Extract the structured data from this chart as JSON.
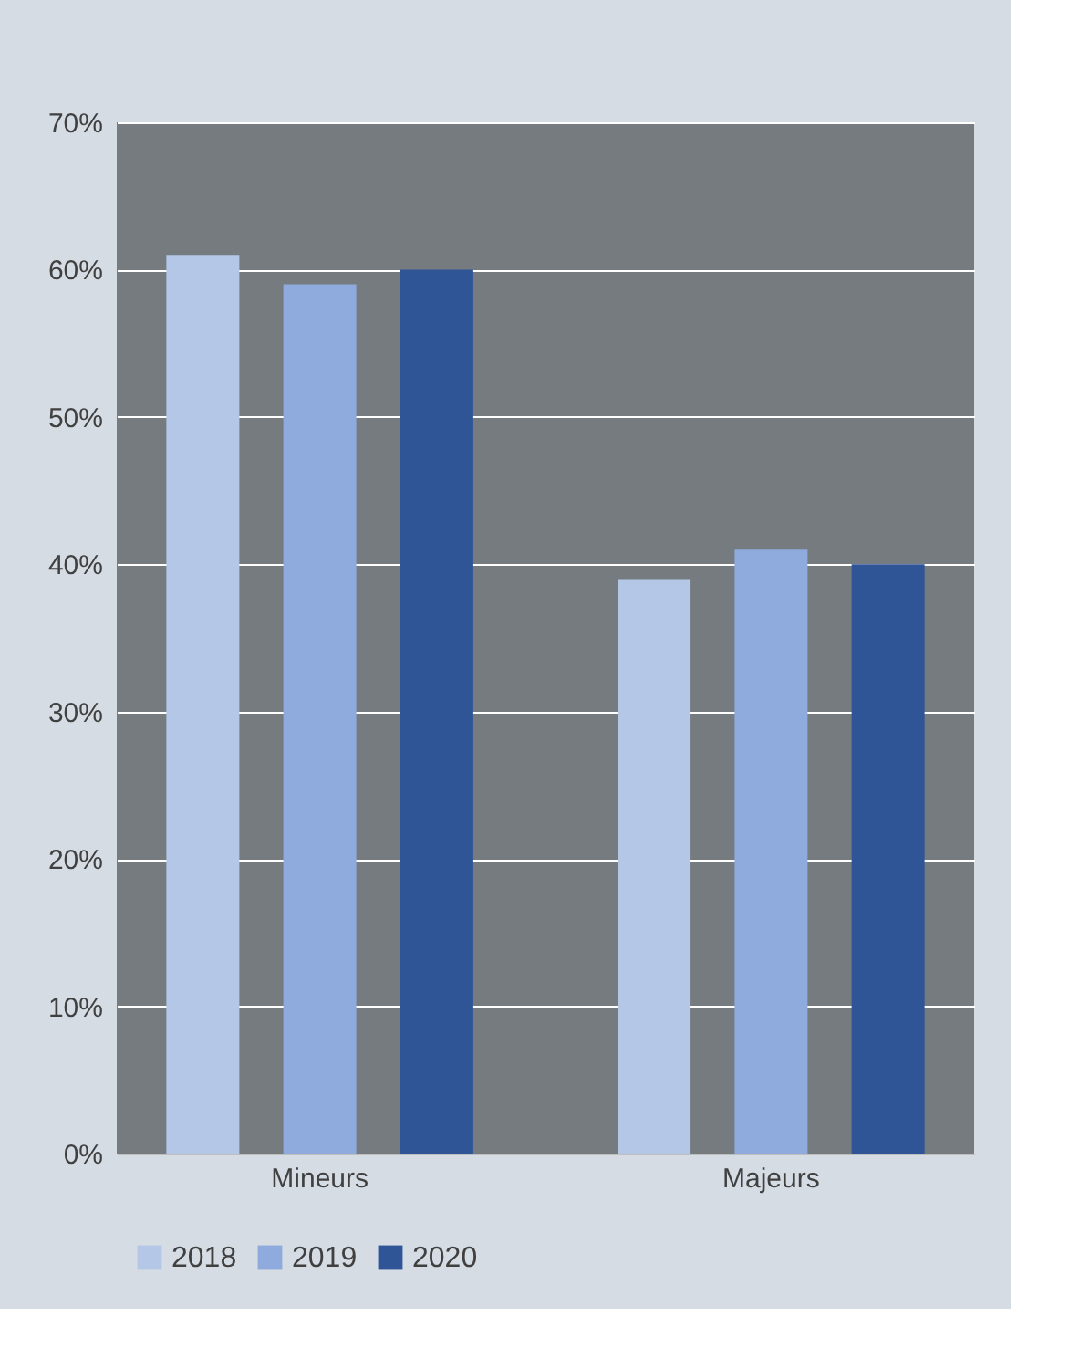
{
  "chart_data": {
    "type": "bar",
    "categories": [
      "Mineurs",
      "Majeurs"
    ],
    "series": [
      {
        "name": "2018",
        "color": "#b4c7e7",
        "values": [
          61,
          39
        ]
      },
      {
        "name": "2019",
        "color": "#8faadc",
        "values": [
          59,
          41
        ]
      },
      {
        "name": "2020",
        "color": "#2f5597",
        "values": [
          60,
          40
        ]
      }
    ],
    "ylim": [
      0,
      70
    ],
    "yticks": [
      {
        "value": 0,
        "label": "0%"
      },
      {
        "value": 10,
        "label": "10%"
      },
      {
        "value": 20,
        "label": "20%"
      },
      {
        "value": 30,
        "label": "30%"
      },
      {
        "value": 40,
        "label": "40%"
      },
      {
        "value": 50,
        "label": "50%"
      },
      {
        "value": 60,
        "label": "60%"
      },
      {
        "value": 70,
        "label": "70%"
      }
    ],
    "grid": "y",
    "legend": "bottom"
  }
}
